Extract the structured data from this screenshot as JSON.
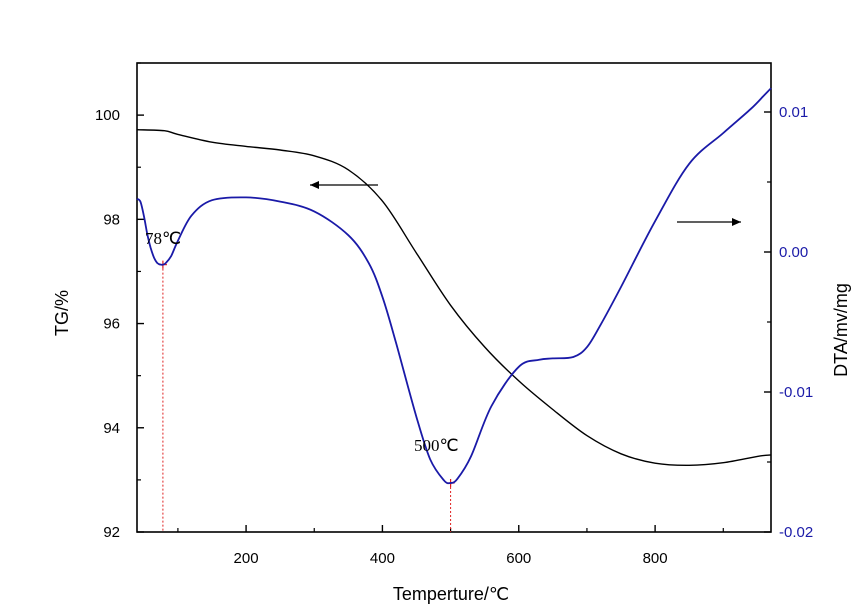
{
  "chart_data": {
    "type": "line",
    "x": {
      "label": "Temperture/℃",
      "range": [
        40,
        970
      ],
      "ticks": [
        200,
        400,
        600,
        800
      ],
      "tick_labels": [
        "200",
        "400",
        "600",
        "800"
      ]
    },
    "y_left": {
      "label": "TG/%",
      "range": [
        92,
        101
      ],
      "ticks": [
        92,
        94,
        96,
        98,
        100
      ],
      "tick_labels": [
        "92",
        "94",
        "96",
        "98",
        "100"
      ],
      "color": "#000000"
    },
    "y_right": {
      "label": "DTA/mv/mg",
      "range": [
        -0.02,
        0.0135
      ],
      "ticks": [
        -0.02,
        -0.01,
        0.0,
        0.01
      ],
      "tick_labels": [
        "-0.02",
        "-0.01",
        "0.00",
        "0.01"
      ],
      "color": "#1a1aa8"
    },
    "series": [
      {
        "name": "TG",
        "axis": "left",
        "color": "#000000",
        "x": [
          40,
          80,
          100,
          150,
          200,
          250,
          300,
          350,
          400,
          450,
          500,
          550,
          600,
          650,
          700,
          750,
          800,
          850,
          900,
          950,
          970
        ],
        "y": [
          99.72,
          99.7,
          99.63,
          99.48,
          99.4,
          99.33,
          99.22,
          98.95,
          98.35,
          97.35,
          96.35,
          95.55,
          94.9,
          94.35,
          93.85,
          93.5,
          93.32,
          93.28,
          93.33,
          93.45,
          93.48
        ]
      },
      {
        "name": "DTA",
        "axis": "right",
        "color": "#1a1aa8",
        "x": [
          40,
          45,
          50,
          55,
          60,
          65,
          70,
          75,
          78,
          82,
          90,
          100,
          120,
          150,
          200,
          250,
          300,
          350,
          380,
          400,
          420,
          450,
          470,
          490,
          500,
          510,
          530,
          560,
          600,
          630,
          650,
          680,
          700,
          720,
          750,
          800,
          850,
          900,
          940,
          960,
          970
        ],
        "y": [
          0.0038,
          0.0036,
          0.0026,
          0.0013,
          0.0003,
          -0.0004,
          -0.0008,
          -0.0009,
          -0.0009,
          -0.0008,
          -0.0003,
          0.0008,
          0.0026,
          0.0037,
          0.0039,
          0.0036,
          0.0029,
          0.0012,
          -0.0008,
          -0.0032,
          -0.0065,
          -0.0118,
          -0.0148,
          -0.0163,
          -0.0165,
          -0.0162,
          -0.0146,
          -0.011,
          -0.0082,
          -0.0077,
          -0.0076,
          -0.0075,
          -0.0068,
          -0.0052,
          -0.0025,
          0.0022,
          0.0063,
          0.0085,
          0.0102,
          0.0112,
          0.0117
        ]
      }
    ],
    "peaks": [
      {
        "label": "78℃",
        "x": 78
      },
      {
        "label": "500℃",
        "x": 500
      }
    ],
    "arrows": [
      {
        "direction": "left",
        "points_to": "TG"
      },
      {
        "direction": "right",
        "points_to": "DTA"
      }
    ]
  }
}
